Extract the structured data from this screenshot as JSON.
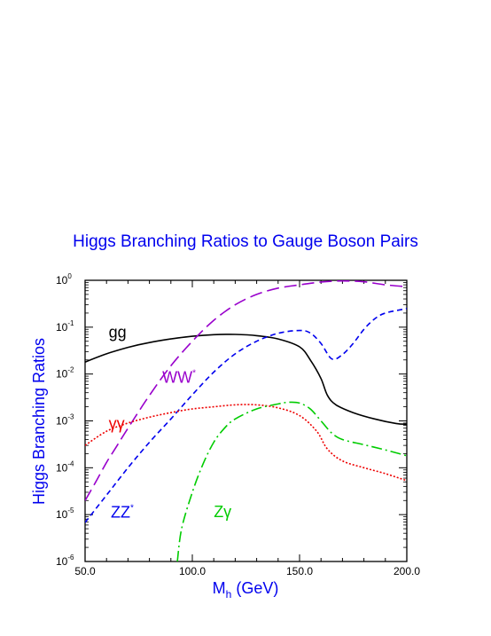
{
  "chart_data": {
    "type": "line",
    "title": "Higgs Branching Ratios to Gauge Boson Pairs",
    "xlabel": {
      "main": "M",
      "sub": "h",
      "tail": " (GeV)"
    },
    "ylabel": "Higgs Branching Ratios",
    "xlim": [
      50,
      200
    ],
    "ylim": [
      1e-06,
      1
    ],
    "yscale": "log",
    "grid": false,
    "x_ticks": [
      {
        "value": 50,
        "label": "50.0"
      },
      {
        "value": 100,
        "label": "100.0"
      },
      {
        "value": 150,
        "label": "150.0"
      },
      {
        "value": 200,
        "label": "200.0"
      }
    ],
    "y_ticks": [
      {
        "value": 1,
        "base": "10",
        "exp": "0"
      },
      {
        "value": 0.1,
        "base": "10",
        "exp": "-1"
      },
      {
        "value": 0.01,
        "base": "10",
        "exp": "-2"
      },
      {
        "value": 0.001,
        "base": "10",
        "exp": "-3"
      },
      {
        "value": 0.0001,
        "base": "10",
        "exp": "-4"
      },
      {
        "value": 1e-05,
        "base": "10",
        "exp": "-5"
      },
      {
        "value": 1e-06,
        "base": "10",
        "exp": "-6"
      }
    ],
    "series": [
      {
        "id": "gg",
        "name": "gg",
        "label_sup": "",
        "color": "#000000",
        "dash": "",
        "label_at": [
          61,
          0.06
        ],
        "points": [
          [
            50,
            0.018
          ],
          [
            60,
            0.027
          ],
          [
            70,
            0.037
          ],
          [
            80,
            0.047
          ],
          [
            90,
            0.056
          ],
          [
            100,
            0.064
          ],
          [
            110,
            0.069
          ],
          [
            120,
            0.07
          ],
          [
            130,
            0.066
          ],
          [
            140,
            0.056
          ],
          [
            150,
            0.038
          ],
          [
            155,
            0.02
          ],
          [
            160,
            0.008
          ],
          [
            163,
            0.0035
          ],
          [
            167,
            0.0022
          ],
          [
            175,
            0.0015
          ],
          [
            185,
            0.0011
          ],
          [
            195,
            0.00088
          ],
          [
            200,
            0.00085
          ]
        ]
      },
      {
        "id": "ww",
        "name": "WW",
        "label_sup": "*",
        "color": "#9900cc",
        "dash": "14,6",
        "label_at": [
          86,
          0.0065
        ],
        "points": [
          [
            50,
            2e-05
          ],
          [
            55,
            5e-05
          ],
          [
            60,
            0.00013
          ],
          [
            65,
            0.0003
          ],
          [
            70,
            0.0007
          ],
          [
            80,
            0.0035
          ],
          [
            90,
            0.015
          ],
          [
            100,
            0.05
          ],
          [
            110,
            0.14
          ],
          [
            120,
            0.3
          ],
          [
            130,
            0.5
          ],
          [
            140,
            0.68
          ],
          [
            150,
            0.8
          ],
          [
            160,
            0.92
          ],
          [
            170,
            0.97
          ],
          [
            180,
            0.93
          ],
          [
            190,
            0.8
          ],
          [
            200,
            0.73
          ]
        ]
      },
      {
        "id": "zz",
        "name": "ZZ",
        "label_sup": "*",
        "color": "#0000ee",
        "dash": "6,4",
        "label_at": [
          62,
          8.6e-06
        ],
        "points": [
          [
            50,
            6.8e-06
          ],
          [
            60,
            2.6e-05
          ],
          [
            70,
            0.0001
          ],
          [
            80,
            0.00035
          ],
          [
            90,
            0.0011
          ],
          [
            100,
            0.0036
          ],
          [
            110,
            0.011
          ],
          [
            120,
            0.027
          ],
          [
            130,
            0.05
          ],
          [
            140,
            0.074
          ],
          [
            150,
            0.085
          ],
          [
            155,
            0.075
          ],
          [
            160,
            0.045
          ],
          [
            165,
            0.021
          ],
          [
            170,
            0.026
          ],
          [
            175,
            0.045
          ],
          [
            180,
            0.09
          ],
          [
            185,
            0.15
          ],
          [
            190,
            0.2
          ],
          [
            200,
            0.25
          ]
        ]
      },
      {
        "id": "gammagamma",
        "name": "γγ",
        "label_sup": "",
        "color": "#ee0000",
        "dash": "2,2",
        "label_at": [
          61,
          0.00068
        ],
        "points": [
          [
            50,
            0.0003
          ],
          [
            60,
            0.0006
          ],
          [
            70,
            0.0009
          ],
          [
            80,
            0.0012
          ],
          [
            90,
            0.0015
          ],
          [
            100,
            0.0018
          ],
          [
            110,
            0.002
          ],
          [
            120,
            0.0022
          ],
          [
            130,
            0.0022
          ],
          [
            140,
            0.0019
          ],
          [
            150,
            0.0013
          ],
          [
            158,
            0.0006
          ],
          [
            163,
            0.00025
          ],
          [
            170,
            0.00014
          ],
          [
            180,
            0.0001
          ],
          [
            190,
            7.5e-05
          ],
          [
            200,
            5.3e-05
          ]
        ]
      },
      {
        "id": "zgamma",
        "name": "Zγ",
        "label_sup": "",
        "color": "#00cc00",
        "dash": "12,4,2,4",
        "label_at": [
          110,
          8.8e-06
        ],
        "points": [
          [
            93,
            1e-06
          ],
          [
            95,
            5e-06
          ],
          [
            100,
            3e-05
          ],
          [
            105,
            0.00012
          ],
          [
            110,
            0.00035
          ],
          [
            115,
            0.0007
          ],
          [
            120,
            0.0011
          ],
          [
            130,
            0.0018
          ],
          [
            140,
            0.0023
          ],
          [
            145,
            0.0025
          ],
          [
            150,
            0.0024
          ],
          [
            155,
            0.0018
          ],
          [
            160,
            0.001
          ],
          [
            165,
            0.00055
          ],
          [
            170,
            0.0004
          ],
          [
            180,
            0.00031
          ],
          [
            190,
            0.00024
          ],
          [
            200,
            0.00018
          ]
        ]
      }
    ]
  },
  "colors": {
    "title": "#0000ee",
    "axis_title": "#0000ee",
    "axis": "#000000"
  }
}
